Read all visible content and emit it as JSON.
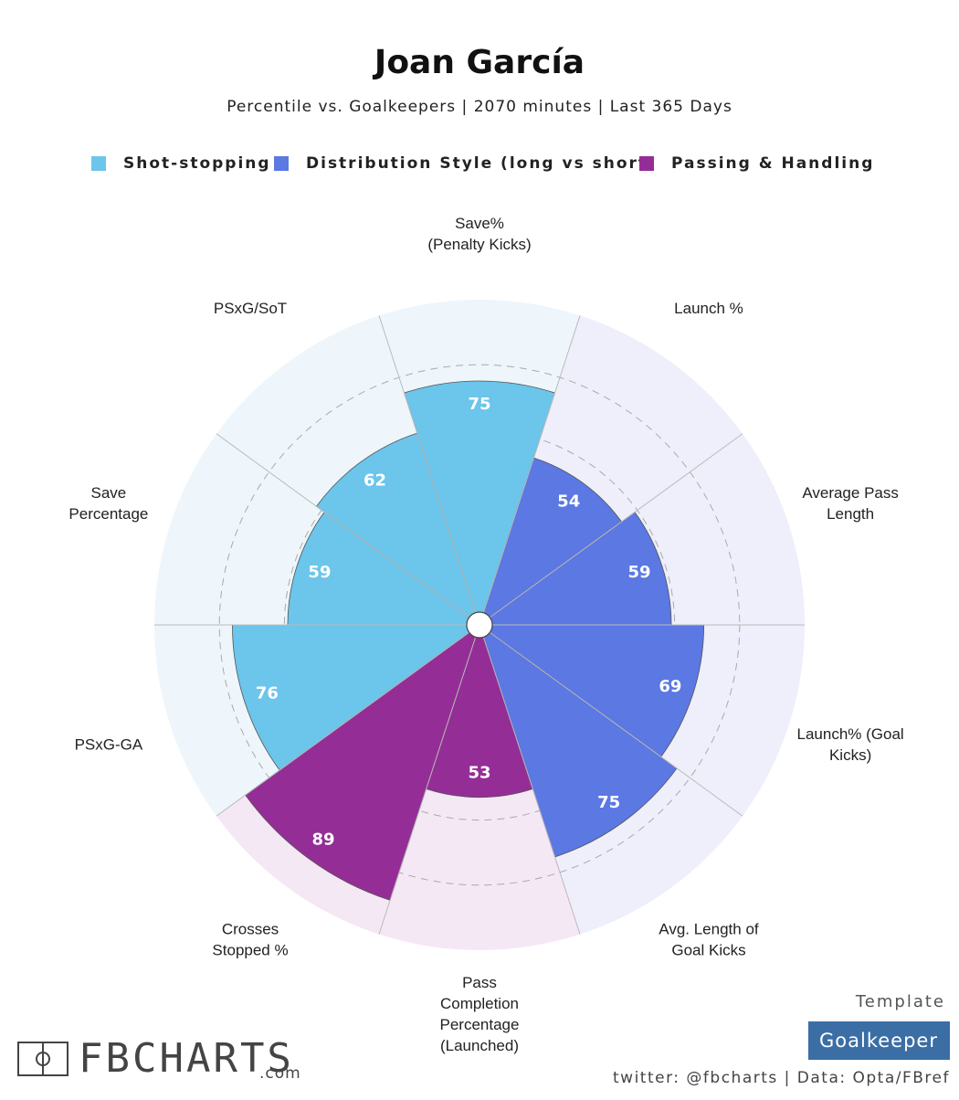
{
  "chart_data": {
    "type": "pizza",
    "title": "Joan García",
    "subtitle": "Percentile vs. Goalkeepers | 2070 minutes | Last 365 Days",
    "categories": [
      [
        "Save%",
        "(Penalty Kicks)"
      ],
      [
        "Launch %"
      ],
      [
        "Average Pass",
        "Length"
      ],
      [
        "Launch% (Goal",
        "Kicks)"
      ],
      [
        "Avg. Length of",
        "Goal Kicks"
      ],
      [
        "Pass",
        "Completion",
        "Percentage",
        "(Launched)"
      ],
      [
        "Crosses",
        "Stopped %"
      ],
      [
        "PSxG-GA"
      ],
      [
        "Save",
        "Percentage"
      ],
      [
        "PSxG/SoT"
      ]
    ],
    "series": [
      {
        "name": "Shot-stopping",
        "color": "#6cc5ea",
        "background_color": "#eef6fb",
        "values": [
          75,
          null,
          null,
          null,
          null,
          null,
          null,
          76,
          59,
          62
        ]
      },
      {
        "name": "Distribution Style (long vs short)",
        "color": "#5b78e3",
        "background_color": "#eeeffa",
        "values": [
          null,
          54,
          59,
          69,
          75,
          null,
          null,
          null,
          null,
          null
        ]
      },
      {
        "name": "Passing & Handling",
        "color": "#952d97",
        "background_color": "#f5e8f5",
        "values": [
          null,
          null,
          null,
          null,
          null,
          53,
          89,
          null,
          null,
          null
        ]
      }
    ],
    "ylim": [
      0,
      100
    ],
    "yticks": [
      20,
      40,
      60,
      80
    ],
    "grid": true
  },
  "footer": {
    "template_label": "Template",
    "template": "Goalkeeper",
    "credit": "twitter: @fbcharts | Data: Opta/FBref",
    "brand": "FBCHARTS",
    "brand_suffix": ".com"
  }
}
